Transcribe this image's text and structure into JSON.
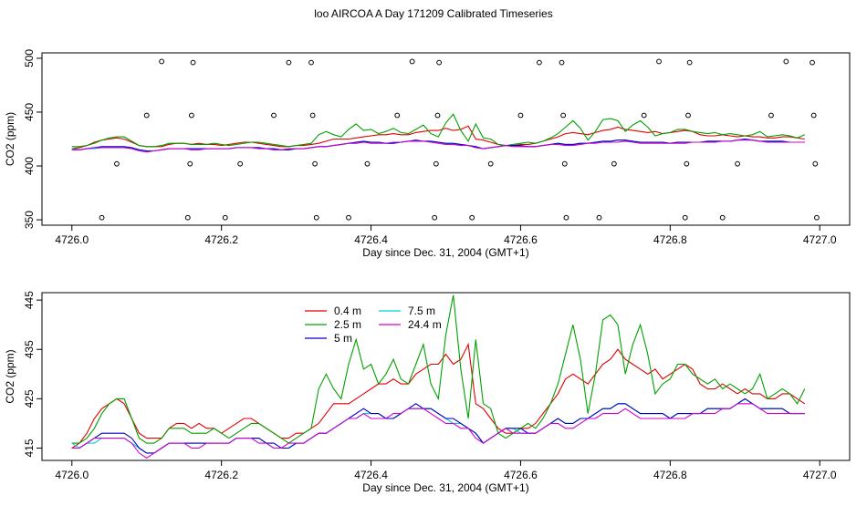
{
  "title": "loo AIRCOA A  Day 171209  Calibrated Timeseries",
  "legend": [
    {
      "name": "0.4 m",
      "color": "#e00000"
    },
    {
      "name": "2.5 m",
      "color": "#00a000"
    },
    {
      "name": "5 m",
      "color": "#0000c0"
    },
    {
      "name": "7.5 m",
      "color": "#00d0d0"
    },
    {
      "name": "24.4 m",
      "color": "#d000d0"
    }
  ],
  "chart_data": [
    {
      "type": "line",
      "xlabel": "Day since Dec. 31, 2004 (GMT+1)",
      "ylabel": "CO2 (ppm)",
      "xlim": [
        4725.96,
        4727.04
      ],
      "ylim": [
        345,
        505
      ],
      "xticks": [
        "4726.0",
        "4726.2",
        "4726.4",
        "4726.6",
        "4726.8",
        "4727.0"
      ],
      "yticks": [
        "350",
        "400",
        "450",
        "500"
      ],
      "points": [
        {
          "x": 4726.04,
          "y": 352
        },
        {
          "x": 4726.06,
          "y": 402
        },
        {
          "x": 4726.1,
          "y": 447
        },
        {
          "x": 4726.12,
          "y": 497
        },
        {
          "x": 4726.155,
          "y": 352
        },
        {
          "x": 4726.158,
          "y": 402
        },
        {
          "x": 4726.16,
          "y": 447
        },
        {
          "x": 4726.162,
          "y": 496
        },
        {
          "x": 4726.205,
          "y": 352
        },
        {
          "x": 4726.225,
          "y": 402
        },
        {
          "x": 4726.27,
          "y": 447
        },
        {
          "x": 4726.29,
          "y": 496
        },
        {
          "x": 4726.32,
          "y": 496
        },
        {
          "x": 4726.322,
          "y": 447
        },
        {
          "x": 4726.325,
          "y": 402
        },
        {
          "x": 4726.327,
          "y": 352
        },
        {
          "x": 4726.37,
          "y": 352
        },
        {
          "x": 4726.395,
          "y": 402
        },
        {
          "x": 4726.435,
          "y": 447
        },
        {
          "x": 4726.455,
          "y": 497
        },
        {
          "x": 4726.485,
          "y": 352
        },
        {
          "x": 4726.487,
          "y": 402
        },
        {
          "x": 4726.489,
          "y": 447
        },
        {
          "x": 4726.491,
          "y": 496
        },
        {
          "x": 4726.535,
          "y": 352
        },
        {
          "x": 4726.56,
          "y": 402
        },
        {
          "x": 4726.6,
          "y": 447
        },
        {
          "x": 4726.625,
          "y": 496
        },
        {
          "x": 4726.655,
          "y": 496
        },
        {
          "x": 4726.657,
          "y": 447
        },
        {
          "x": 4726.659,
          "y": 402
        },
        {
          "x": 4726.661,
          "y": 352
        },
        {
          "x": 4726.705,
          "y": 352
        },
        {
          "x": 4726.725,
          "y": 402
        },
        {
          "x": 4726.765,
          "y": 447
        },
        {
          "x": 4726.785,
          "y": 497
        },
        {
          "x": 4726.82,
          "y": 352
        },
        {
          "x": 4726.822,
          "y": 402
        },
        {
          "x": 4726.824,
          "y": 447
        },
        {
          "x": 4726.826,
          "y": 496
        },
        {
          "x": 4726.87,
          "y": 352
        },
        {
          "x": 4726.89,
          "y": 402
        },
        {
          "x": 4726.935,
          "y": 447
        },
        {
          "x": 4726.955,
          "y": 497
        },
        {
          "x": 4726.99,
          "y": 496
        },
        {
          "x": 4726.992,
          "y": 447
        },
        {
          "x": 4726.994,
          "y": 402
        },
        {
          "x": 4726.996,
          "y": 352
        }
      ]
    },
    {
      "type": "line",
      "xlabel": "Day since Dec. 31, 2004 (GMT+1)",
      "ylabel": "CO2 (ppm)",
      "xlim": [
        4725.96,
        4727.04
      ],
      "ylim": [
        412.5,
        446.5
      ],
      "xticks": [
        "4726.0",
        "4726.2",
        "4726.4",
        "4726.6",
        "4726.8",
        "4727.0"
      ],
      "yticks": [
        "415",
        "425",
        "435",
        "445"
      ]
    }
  ]
}
